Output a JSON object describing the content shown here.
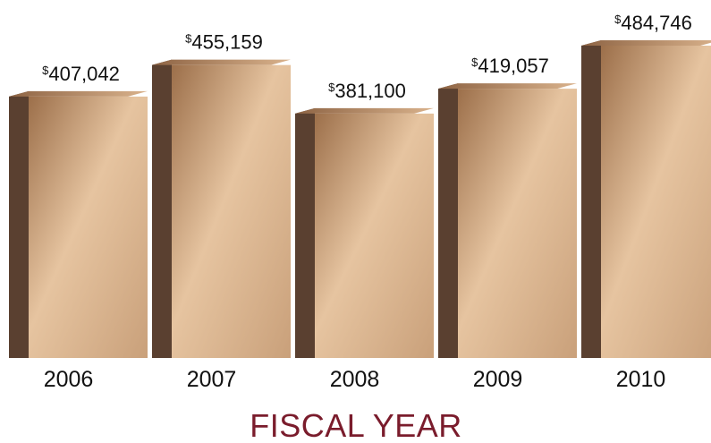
{
  "chart_data": {
    "type": "bar",
    "categories": [
      "2006",
      "2007",
      "2008",
      "2009",
      "2010"
    ],
    "values": [
      407042,
      455159,
      381100,
      419057,
      484746
    ],
    "value_labels": [
      "407,042",
      "455,159",
      "381,100",
      "419,057",
      "484,746"
    ],
    "currency_symbol": "$",
    "xlabel": "FISCAL YEAR",
    "title": "",
    "ylabel": "",
    "grid": false,
    "legend": "none"
  },
  "colors": {
    "bar_front_light": "#e6c4a0",
    "bar_front_dark": "#9c6f4a",
    "bar_side": "#5a4030",
    "bar_top": "#c69a72",
    "axis_title": "#7a1c2c",
    "text": "#111111"
  }
}
